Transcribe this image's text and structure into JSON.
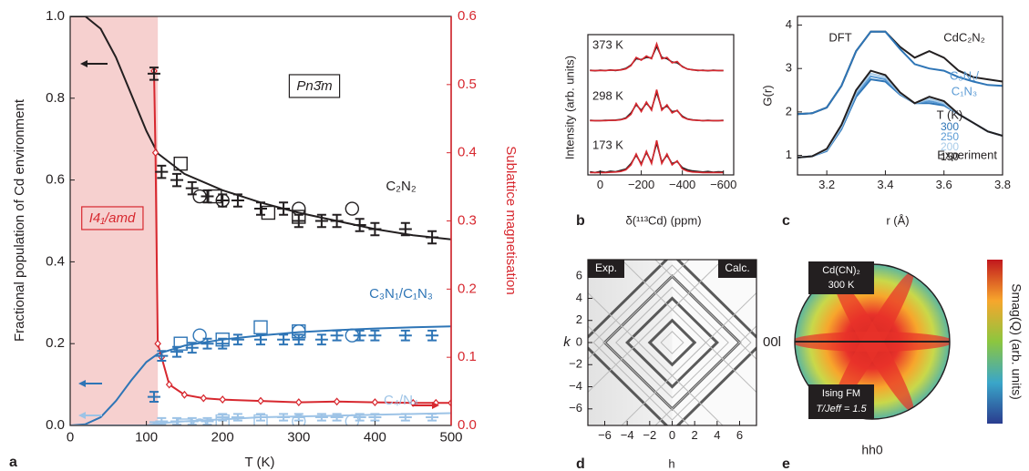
{
  "chart_data": [
    {
      "type": "line",
      "panel_label": "a",
      "xlabel": "T (K)",
      "ylabel": "Fractional population of Cd environment",
      "y2label": "Sublattice magnetisation",
      "xlim": [
        0,
        500
      ],
      "ylim": [
        0,
        1
      ],
      "y2lim": [
        0,
        0.6
      ],
      "xticks": [
        0,
        100,
        200,
        300,
        400,
        500
      ],
      "yticks": [
        {
          "value": 0,
          "label": "0.0"
        },
        0.2,
        0.4,
        0.6,
        0.8,
        {
          "value": 1,
          "label": "1.0"
        }
      ],
      "y2ticks": [
        {
          "value": 0,
          "label": "0.0"
        },
        0.1,
        0.2,
        0.3,
        0.4,
        0.5,
        0.6
      ],
      "shaded_xlim": [
        0,
        115
      ],
      "shade_color": "#f6d0cf",
      "annotations": [
        "Pn3̄m",
        "I4₁/amd",
        "C₂N₂",
        "C₃N₁/C₁N₃",
        "C₄/N₄"
      ],
      "series": [
        {
          "kind": "line",
          "color": "#231f20",
          "x": [
            0,
            20,
            40,
            60,
            80,
            100,
            115,
            150,
            200,
            250,
            300,
            350,
            400,
            450,
            500
          ],
          "values": [
            1.0,
            1.0,
            0.97,
            0.9,
            0.81,
            0.72,
            0.665,
            0.615,
            0.575,
            0.545,
            0.52,
            0.5,
            0.48,
            0.465,
            0.455
          ]
        },
        {
          "kind": "line",
          "color": "#2e75b6",
          "x": [
            0,
            20,
            40,
            60,
            80,
            100,
            115,
            150,
            200,
            250,
            300,
            350,
            400,
            450,
            500
          ],
          "values": [
            0,
            0.003,
            0.02,
            0.06,
            0.11,
            0.155,
            0.175,
            0.195,
            0.21,
            0.22,
            0.228,
            0.233,
            0.237,
            0.24,
            0.242
          ]
        },
        {
          "kind": "line",
          "color": "#9dc3e6",
          "x": [
            0,
            20,
            40,
            60,
            80,
            100,
            115,
            150,
            200,
            250,
            300,
            350,
            400,
            450,
            500
          ],
          "values": [
            0,
            0,
            0,
            0,
            0,
            0,
            0.005,
            0.01,
            0.015,
            0.02,
            0.022,
            0.024,
            0.026,
            0.028,
            0.03
          ]
        },
        {
          "kind": "line",
          "axis": "y2",
          "color": "#d7282f",
          "marker": "diamond",
          "x": [
            110,
            112,
            115,
            120,
            130,
            150,
            175,
            200,
            250,
            300,
            350,
            400,
            450,
            480,
            500
          ],
          "values": [
            0.52,
            0.4,
            0.12,
            0.1,
            0.06,
            0.045,
            0.04,
            0.038,
            0.036,
            0.034,
            0.035,
            0.034,
            0.033,
            0.033,
            0.033
          ]
        },
        {
          "kind": "errorbar",
          "color": "#231f20",
          "error": 0.015,
          "x": [
            110,
            120,
            140,
            160,
            180,
            200,
            220,
            250,
            280,
            300,
            330,
            350,
            380,
            400,
            440,
            475
          ],
          "values": [
            0.86,
            0.62,
            0.6,
            0.58,
            0.56,
            0.55,
            0.55,
            0.53,
            0.53,
            0.5,
            0.5,
            0.5,
            0.49,
            0.48,
            0.48,
            0.46
          ]
        },
        {
          "kind": "errorbar",
          "color": "#2e75b6",
          "error": 0.012,
          "x": [
            110,
            120,
            140,
            160,
            180,
            200,
            220,
            250,
            280,
            300,
            330,
            350,
            380,
            400,
            440,
            475
          ],
          "values": [
            0.07,
            0.17,
            0.18,
            0.19,
            0.2,
            0.2,
            0.21,
            0.21,
            0.21,
            0.21,
            0.21,
            0.22,
            0.22,
            0.22,
            0.22,
            0.22
          ]
        },
        {
          "kind": "errorbar",
          "color": "#9dc3e6",
          "error": 0.008,
          "x": [
            110,
            120,
            140,
            160,
            180,
            200,
            220,
            250,
            280,
            300,
            330,
            350,
            380,
            400,
            440,
            475
          ],
          "values": [
            0.0,
            0.01,
            0.01,
            0.01,
            0.01,
            0.02,
            0.02,
            0.02,
            0.02,
            0.02,
            0.02,
            0.02,
            0.02,
            0.02,
            0.02,
            0.02
          ]
        },
        {
          "kind": "scatter",
          "marker": "circle",
          "color": "#231f20",
          "x": [
            170,
            200,
            300,
            370
          ],
          "values": [
            0.56,
            0.55,
            0.53,
            0.53
          ]
        },
        {
          "kind": "scatter",
          "marker": "square",
          "color": "#231f20",
          "x": [
            145,
            190,
            260,
            300
          ],
          "values": [
            0.64,
            0.56,
            0.52,
            0.51
          ]
        },
        {
          "kind": "scatter",
          "marker": "circle",
          "color": "#2e75b6",
          "x": [
            170,
            300,
            370
          ],
          "values": [
            0.22,
            0.23,
            0.22
          ]
        },
        {
          "kind": "scatter",
          "marker": "square",
          "color": "#2e75b6",
          "x": [
            145,
            200,
            250,
            300
          ],
          "values": [
            0.2,
            0.21,
            0.24,
            0.23
          ]
        },
        {
          "kind": "scatter",
          "marker": "circle",
          "color": "#9dc3e6",
          "x": [
            170,
            300,
            370
          ],
          "values": [
            0,
            0.01,
            0.01
          ]
        },
        {
          "kind": "scatter",
          "marker": "square",
          "color": "#9dc3e6",
          "x": [
            150,
            200,
            250
          ],
          "values": [
            0,
            0.01,
            0.01
          ]
        }
      ]
    },
    {
      "type": "line",
      "panel_label": "b",
      "xlabel": "δ(¹¹³Cd) (ppm)",
      "ylabel": "Intensity (arb. units)",
      "xlim": [
        60,
        -650
      ],
      "xticks": [
        0,
        {
          "value": -200,
          "label": "−200"
        },
        {
          "value": -400,
          "label": "−400"
        },
        {
          "value": -600,
          "label": "−600"
        }
      ],
      "annotations": [
        "373 K",
        "298 K",
        "173 K"
      ],
      "x": [
        50,
        25,
        0,
        -25,
        -50,
        -75,
        -100,
        -125,
        -150,
        -175,
        -200,
        -225,
        -250,
        -275,
        -300,
        -325,
        -350,
        -375,
        -400,
        -425,
        -450,
        -475,
        -500,
        -525,
        -550,
        -575,
        -600
      ],
      "series": [
        {
          "kind": "line",
          "color": "#231f20",
          "values": [
            0.03,
            0.01,
            0.03,
            0.02,
            0.04,
            0.02,
            0.05,
            0.1,
            0.22,
            0.45,
            0.42,
            0.5,
            0.48,
            0.9,
            0.5,
            0.45,
            0.33,
            0.3,
            0.17,
            0.07,
            0.05,
            0.02,
            0.03,
            0.01,
            0.03,
            0.02,
            0.02
          ]
        },
        {
          "kind": "line",
          "color": "#d7282f",
          "values": [
            0.02,
            0.02,
            0.02,
            0.02,
            0.03,
            0.03,
            0.04,
            0.08,
            0.2,
            0.5,
            0.4,
            0.55,
            0.45,
            1.0,
            0.45,
            0.5,
            0.3,
            0.35,
            0.15,
            0.08,
            0.04,
            0.03,
            0.02,
            0.02,
            0.02,
            0.02,
            0.02
          ]
        },
        {
          "kind": "line",
          "color": "#231f20",
          "values": [
            0.03,
            0.02,
            0.02,
            0.03,
            0.03,
            0.04,
            0.06,
            0.12,
            0.3,
            0.6,
            0.4,
            0.65,
            0.45,
            1.05,
            0.45,
            0.55,
            0.35,
            0.38,
            0.18,
            0.08,
            0.05,
            0.03,
            0.02,
            0.03,
            0.02,
            0.02,
            0.03
          ]
        },
        {
          "kind": "line",
          "color": "#d7282f",
          "values": [
            0.02,
            0.02,
            0.02,
            0.02,
            0.03,
            0.03,
            0.05,
            0.1,
            0.25,
            0.65,
            0.35,
            0.7,
            0.4,
            1.15,
            0.4,
            0.6,
            0.3,
            0.4,
            0.15,
            0.07,
            0.04,
            0.03,
            0.02,
            0.02,
            0.02,
            0.02,
            0.02
          ]
        },
        {
          "kind": "line",
          "color": "#231f20",
          "values": [
            0.05,
            0.02,
            0.06,
            0.03,
            0.07,
            0.05,
            0.1,
            0.15,
            0.35,
            0.65,
            0.35,
            0.75,
            0.4,
            1.1,
            0.4,
            0.65,
            0.35,
            0.42,
            0.2,
            0.12,
            0.08,
            0.06,
            0.04,
            0.06,
            0.03,
            0.05,
            0.04
          ]
        },
        {
          "kind": "line",
          "color": "#d7282f",
          "values": [
            0.02,
            0.02,
            0.02,
            0.02,
            0.03,
            0.04,
            0.06,
            0.12,
            0.3,
            0.7,
            0.3,
            0.8,
            0.35,
            1.2,
            0.35,
            0.7,
            0.3,
            0.45,
            0.15,
            0.07,
            0.04,
            0.03,
            0.02,
            0.02,
            0.02,
            0.02,
            0.02
          ]
        }
      ]
    },
    {
      "type": "line",
      "panel_label": "c",
      "xlabel": "r (Å)",
      "ylabel": "G(r)",
      "xlim": [
        3.1,
        3.8
      ],
      "ylim": [
        0.55,
        4.2
      ],
      "xticks": [
        3.2,
        3.4,
        3.6,
        3.8
      ],
      "yticks": [
        1,
        2,
        3,
        4
      ],
      "annotations": [
        "DFT",
        "CdC₂N₂",
        "C₃N₁/",
        "C₁N₃",
        "T (K)",
        "Experiment"
      ],
      "x": [
        3.1,
        3.15,
        3.2,
        3.25,
        3.3,
        3.35,
        3.4,
        3.45,
        3.5,
        3.55,
        3.6,
        3.65,
        3.7,
        3.75,
        3.8
      ],
      "series": [
        {
          "kind": "line",
          "color": "#231f20",
          "values": [
            1.95,
            1.97,
            2.1,
            2.6,
            3.4,
            3.85,
            3.85,
            3.5,
            3.25,
            3.4,
            3.25,
            2.95,
            2.8,
            2.75,
            2.7
          ]
        },
        {
          "kind": "line",
          "color": "#2e75b6",
          "values": [
            1.95,
            1.97,
            2.1,
            2.6,
            3.4,
            3.85,
            3.85,
            3.45,
            3.1,
            3.0,
            2.95,
            2.8,
            2.7,
            2.62,
            2.6
          ]
        },
        {
          "kind": "line",
          "name": "300",
          "color": "#2e75b6",
          "values": [
            0.95,
            0.98,
            1.1,
            1.6,
            2.35,
            2.75,
            2.7,
            2.4,
            2.2,
            2.2,
            2.15,
            1.95,
            1.75,
            1.55,
            1.45
          ]
        },
        {
          "kind": "line",
          "name": "250",
          "color": "#5b9bd5",
          "values": [
            0.95,
            0.98,
            1.12,
            1.63,
            2.4,
            2.82,
            2.75,
            2.42,
            2.2,
            2.25,
            2.18,
            1.95,
            1.75,
            1.55,
            1.45
          ]
        },
        {
          "kind": "line",
          "name": "200",
          "color": "#a9cce9",
          "values": [
            0.95,
            0.98,
            1.13,
            1.66,
            2.45,
            2.88,
            2.8,
            2.43,
            2.2,
            2.3,
            2.2,
            1.95,
            1.75,
            1.55,
            1.45
          ]
        },
        {
          "kind": "line",
          "name": "150",
          "color": "#231f20",
          "values": [
            0.95,
            0.98,
            1.15,
            1.7,
            2.5,
            2.95,
            2.85,
            2.45,
            2.2,
            2.35,
            2.25,
            1.95,
            1.75,
            1.55,
            1.45
          ]
        }
      ]
    },
    {
      "type": "heatmap",
      "panel_label": "d",
      "xlabel": "h",
      "ylabel": "k",
      "xlim": [
        -7.5,
        7.5
      ],
      "ylim": [
        -7.5,
        7.5
      ],
      "xticks": [
        {
          "value": -6,
          "label": "−6"
        },
        {
          "value": -4,
          "label": "−4"
        },
        {
          "value": -2,
          "label": "−2"
        },
        0,
        2,
        4,
        6
      ],
      "yticks": [
        {
          "value": -6,
          "label": "−6"
        },
        {
          "value": -4,
          "label": "−4"
        },
        {
          "value": -2,
          "label": "−2"
        },
        0,
        2,
        4,
        6
      ],
      "annotations": [
        "Exp.",
        "Calc."
      ]
    },
    {
      "type": "polar-map",
      "panel_label": "e",
      "xlabel": "hh0",
      "ylabel": "00l",
      "colorbar_label": "Smag(Q) (arb. units)",
      "annotations": [
        "Cd(CN)₂",
        "300 K",
        "Ising FM",
        "T/Jeff = 1.5"
      ]
    }
  ]
}
